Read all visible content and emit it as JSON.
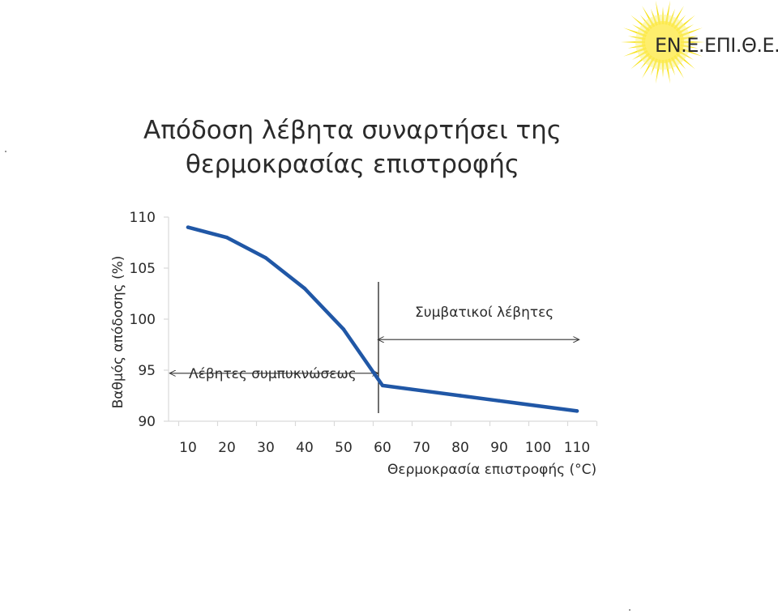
{
  "logo": {
    "text": "ΕΝ.Ε.ΕΠΙ.Θ.Ε.",
    "icon": "sun-icon",
    "sun_color": "#f7e21b"
  },
  "chart_data": {
    "type": "line",
    "title_lines": [
      "Απόδοση λέβητα συναρτήσει της",
      "θερμοκρασίας επιστροφής"
    ],
    "xlabel": "Θερμοκρασία επιστροφής (°C)",
    "ylabel": "Βαθμός απόδοσης (%)",
    "x_ticks": [
      10,
      20,
      30,
      40,
      50,
      60,
      70,
      80,
      90,
      100,
      110
    ],
    "y_ticks": [
      90,
      95,
      100,
      105,
      110
    ],
    "xlim": [
      5,
      115
    ],
    "ylim": [
      90,
      110
    ],
    "grid": false,
    "line_color": "#2057a6",
    "series": [
      {
        "x": [
          10,
          20,
          30,
          40,
          50,
          60,
          70,
          80,
          90,
          100,
          110
        ],
        "values": [
          109,
          108,
          106,
          103,
          99,
          93.5,
          93,
          92.5,
          92,
          91.5,
          91
        ]
      }
    ],
    "divider_x": 60,
    "annotations": [
      {
        "text": "Λέβητες συμπυκνώσεως",
        "range": [
          10,
          60
        ],
        "arrow_y": 94.7
      },
      {
        "text": "Συμβατικοί λέβητες",
        "range": [
          60,
          110
        ],
        "arrow_y": 98
      }
    ]
  }
}
